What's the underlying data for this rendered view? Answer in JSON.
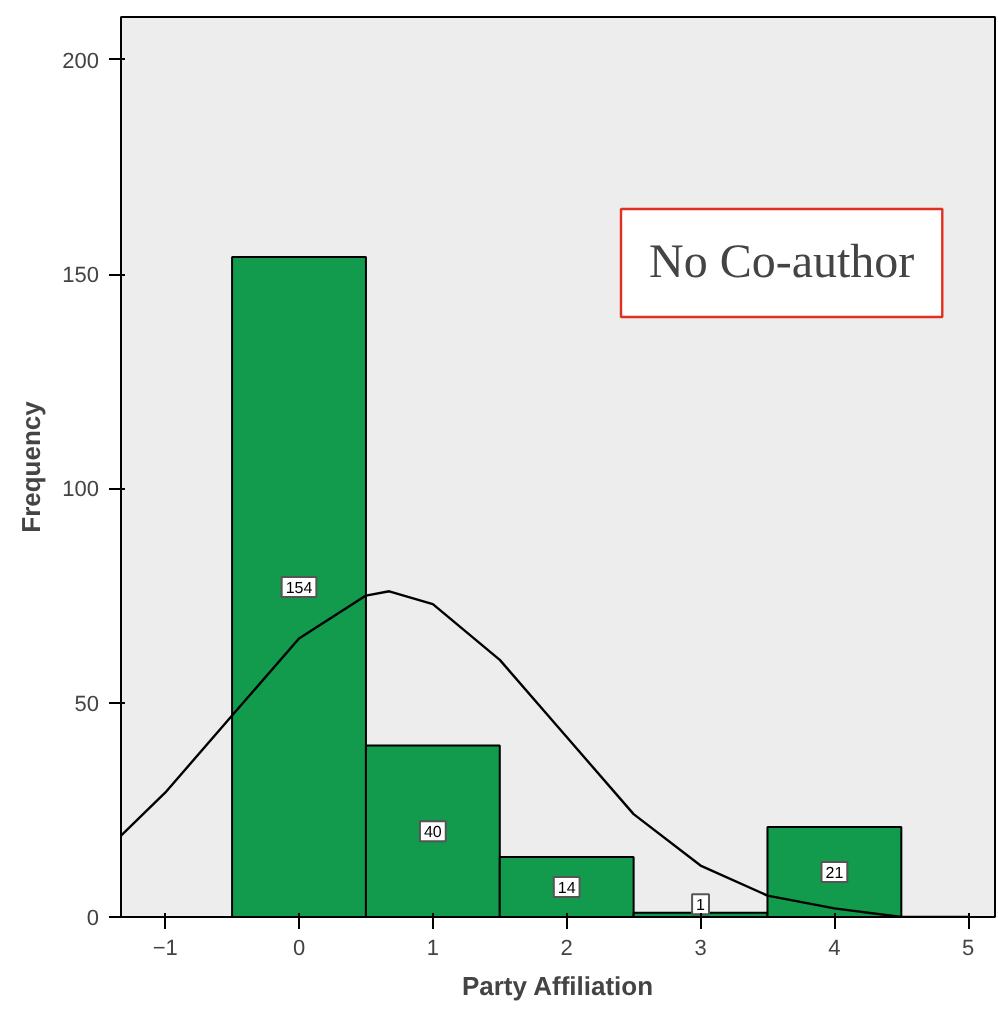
{
  "chart_data": {
    "type": "histogram",
    "xlabel": "Party Affiliation",
    "ylabel": "Frequency",
    "bins": [
      -0.5,
      0.5,
      1.5,
      2.5,
      3.5,
      4.5
    ],
    "series": [
      {
        "color": "#129b4d",
        "values": [
          154,
          40,
          14,
          1,
          21
        ],
        "value_labels": [
          "154",
          "40",
          "14",
          "1",
          "21"
        ]
      },
      {
        "type": "line",
        "color": "#000000",
        "x": [
          -1.33,
          -1,
          -0.5,
          0,
          0.5,
          0.674,
          1,
          1.5,
          2,
          2.5,
          3,
          3.5,
          4,
          4.5,
          5
        ],
        "values": [
          19,
          29,
          47,
          65,
          75,
          76,
          73,
          60,
          42,
          24,
          12,
          5,
          2,
          0,
          0
        ]
      }
    ],
    "xlim": [
      -1.33,
      5.2
    ],
    "ylim": [
      0,
      210
    ],
    "xticks": [
      -1,
      0,
      1,
      2,
      3,
      4,
      5
    ],
    "yticks": [
      0,
      50,
      100,
      150,
      200
    ],
    "grid": false,
    "annotations": [
      "No Co-author"
    ]
  }
}
